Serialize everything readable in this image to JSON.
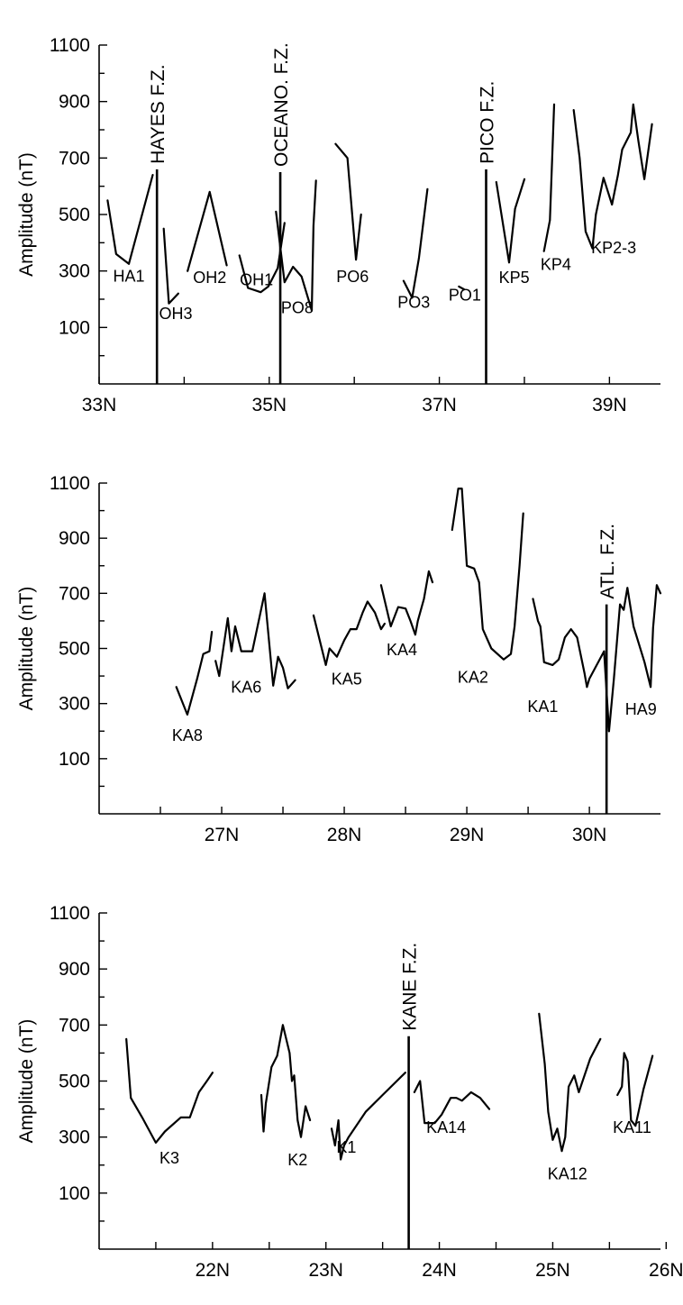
{
  "chart_data": [
    {
      "type": "line",
      "ylabel": "Amplitude (nT)",
      "ylim": [
        -100,
        1100
      ],
      "xlim": [
        33.0,
        39.6
      ],
      "y_ticks": [
        "1100",
        "900",
        "700",
        "500",
        "300",
        "100"
      ],
      "x_ticks": [
        {
          "value": 33,
          "label": "33N"
        },
        {
          "value": 35,
          "label": "35N"
        },
        {
          "value": 37,
          "label": "37N"
        },
        {
          "value": 39,
          "label": "39N"
        }
      ],
      "minor_x_ticks": [
        34,
        36,
        38
      ],
      "fracture_zones": [
        {
          "x": 33.68,
          "label": "HAYES F.Z.",
          "top": 660
        },
        {
          "x": 35.13,
          "label": "OCEANO. F.Z.",
          "top": 650
        },
        {
          "x": 37.55,
          "label": "PICO F.Z.",
          "top": 660
        }
      ],
      "series": [
        {
          "name": "HA1",
          "label_at": [
            33.35,
            262
          ],
          "x": [
            33.1,
            33.2,
            33.35,
            33.63
          ],
          "y": [
            550,
            360,
            325,
            640
          ]
        },
        {
          "name": "OH3",
          "label_at": [
            33.9,
            130
          ],
          "x": [
            33.76,
            33.82,
            33.93
          ],
          "y": [
            450,
            185,
            220
          ]
        },
        {
          "name": "OH2",
          "label_at": [
            34.3,
            257
          ],
          "x": [
            34.04,
            34.3,
            34.5
          ],
          "y": [
            300,
            580,
            320
          ]
        },
        {
          "name": "OH1",
          "label_at": [
            34.85,
            250
          ],
          "x": [
            34.65,
            34.75,
            34.9,
            34.99,
            35.1,
            35.18
          ],
          "y": [
            355,
            240,
            225,
            245,
            310,
            470
          ]
        },
        {
          "name": "PO8",
          "label_at": [
            35.33,
            150
          ],
          "x": [
            35.08,
            35.18,
            35.28,
            35.38,
            35.5,
            35.52,
            35.55
          ],
          "y": [
            510,
            260,
            315,
            280,
            160,
            460,
            620
          ]
        },
        {
          "name": "PO6",
          "label_at": [
            35.98,
            260
          ],
          "x": [
            35.78,
            35.92,
            36.02,
            36.08
          ],
          "y": [
            750,
            700,
            340,
            500
          ]
        },
        {
          "name": "PO3",
          "label_at": [
            36.7,
            170
          ],
          "x": [
            36.58,
            36.68,
            36.76,
            36.86
          ],
          "y": [
            265,
            205,
            345,
            590
          ]
        },
        {
          "name": "PO1",
          "label_at": [
            37.3,
            195
          ],
          "x": [
            37.23,
            37.29
          ],
          "y": [
            245,
            235
          ]
        },
        {
          "name": "KP5",
          "label_at": [
            37.88,
            257
          ],
          "x": [
            37.67,
            37.82,
            37.89,
            38.0
          ],
          "y": [
            615,
            330,
            520,
            625
          ]
        },
        {
          "name": "KP4",
          "label_at": [
            38.37,
            303
          ],
          "x": [
            38.23,
            38.3,
            38.35
          ],
          "y": [
            370,
            480,
            890
          ]
        },
        {
          "name": "KP2-3",
          "label_at": [
            39.05,
            363
          ],
          "x": [
            38.58,
            38.65,
            38.72,
            38.8,
            38.84,
            38.93,
            39.03,
            39.1,
            39.15,
            39.25,
            39.28,
            39.34,
            39.41,
            39.5
          ],
          "y": [
            870,
            700,
            440,
            380,
            500,
            630,
            535,
            640,
            730,
            790,
            890,
            760,
            625,
            820
          ]
        }
      ]
    },
    {
      "type": "line",
      "ylabel": "Amplitude (nT)",
      "ylim": [
        -100,
        1100
      ],
      "xlim": [
        26.0,
        30.58
      ],
      "y_ticks": [
        "1100",
        "900",
        "700",
        "500",
        "300",
        "100"
      ],
      "x_ticks": [
        {
          "value": 27,
          "label": "27N"
        },
        {
          "value": 28,
          "label": "28N"
        },
        {
          "value": 29,
          "label": "29N"
        },
        {
          "value": 30,
          "label": "30N"
        }
      ],
      "minor_x_ticks": [
        26.5,
        27.5,
        28.5,
        29.5
      ],
      "fracture_zones": [
        {
          "x": 30.14,
          "label": "ATL. F.Z.",
          "top": 660
        }
      ],
      "series": [
        {
          "name": "KA8",
          "label_at": [
            26.72,
            165
          ],
          "x": [
            26.63,
            26.72,
            26.8,
            26.85,
            26.9,
            26.92
          ],
          "y": [
            360,
            260,
            390,
            480,
            490,
            560
          ]
        },
        {
          "name": "KA6",
          "label_at": [
            27.2,
            340
          ],
          "x": [
            26.95,
            26.98,
            27.05,
            27.08,
            27.11,
            27.16,
            27.25,
            27.35,
            27.42,
            27.46,
            27.5,
            27.54,
            27.6
          ],
          "y": [
            455,
            400,
            610,
            490,
            580,
            490,
            490,
            700,
            365,
            470,
            430,
            355,
            385
          ]
        },
        {
          "name": "KA5",
          "label_at": [
            28.02,
            370
          ],
          "x": [
            27.75,
            27.85,
            27.88,
            27.94,
            28.0,
            28.05,
            28.1,
            28.15,
            28.19,
            28.25,
            28.3,
            28.33
          ],
          "y": [
            620,
            440,
            500,
            470,
            530,
            570,
            570,
            630,
            670,
            630,
            570,
            590
          ]
        },
        {
          "name": "KA4",
          "label_at": [
            28.47,
            475
          ],
          "x": [
            28.3,
            28.38,
            28.44,
            28.5,
            28.54,
            28.58,
            28.6,
            28.65,
            28.69,
            28.72
          ],
          "y": [
            730,
            580,
            650,
            645,
            600,
            550,
            600,
            680,
            780,
            740
          ]
        },
        {
          "name": "KA2",
          "label_at": [
            29.05,
            375
          ],
          "x": [
            28.88,
            28.93,
            28.96,
            29.0,
            29.06,
            29.1,
            29.13,
            29.2,
            29.3,
            29.36,
            29.39,
            29.43,
            29.46
          ],
          "y": [
            930,
            1080,
            1080,
            800,
            790,
            740,
            570,
            500,
            460,
            480,
            580,
            800,
            990
          ]
        },
        {
          "name": "KA1",
          "label_at": [
            29.62,
            270
          ],
          "x": [
            29.54,
            29.58,
            29.6,
            29.63,
            29.7,
            29.75,
            29.8,
            29.85,
            29.9,
            29.96,
            29.98,
            30.0,
            30.12,
            30.16
          ],
          "y": [
            680,
            600,
            580,
            450,
            440,
            460,
            540,
            570,
            540,
            410,
            360,
            390,
            490,
            200
          ]
        },
        {
          "name": "HA9",
          "label_at": [
            30.42,
            260
          ],
          "x": [
            30.16,
            30.2,
            30.25,
            30.28,
            30.31,
            30.36,
            30.45,
            30.5,
            30.52,
            30.55,
            30.58
          ],
          "y": [
            200,
            390,
            660,
            640,
            720,
            580,
            450,
            360,
            575,
            730,
            700
          ]
        }
      ]
    },
    {
      "type": "line",
      "ylabel": "Amplitude (nT)",
      "ylim": [
        -100,
        1100
      ],
      "xlim": [
        21.0,
        25.95
      ],
      "y_ticks": [
        "1100",
        "900",
        "700",
        "500",
        "300",
        "100"
      ],
      "x_ticks": [
        {
          "value": 22,
          "label": "22N"
        },
        {
          "value": 23,
          "label": "23N"
        },
        {
          "value": 24,
          "label": "24N"
        },
        {
          "value": 25,
          "label": "25N"
        },
        {
          "value": 26,
          "label": "26N"
        }
      ],
      "minor_x_ticks": [
        21.5,
        22.5,
        23.5,
        24.5,
        25.5
      ],
      "fracture_zones": [
        {
          "x": 23.73,
          "label": "KANE F.Z.",
          "top": 660
        }
      ],
      "series": [
        {
          "name": "K3",
          "label_at": [
            21.62,
            205
          ],
          "x": [
            21.24,
            21.28,
            21.38,
            21.5,
            21.58,
            21.72,
            21.8,
            21.88,
            21.95,
            22.0
          ],
          "y": [
            650,
            440,
            370,
            280,
            320,
            370,
            370,
            460,
            500,
            530
          ]
        },
        {
          "name": "K2",
          "label_at": [
            22.75,
            200
          ],
          "x": [
            22.43,
            22.45,
            22.47,
            22.52,
            22.57,
            22.62,
            22.68,
            22.7,
            22.72,
            22.75,
            22.78,
            22.82,
            22.86
          ],
          "y": [
            450,
            320,
            420,
            550,
            590,
            700,
            600,
            500,
            520,
            360,
            300,
            410,
            360
          ]
        },
        {
          "name": "K1",
          "label_at": [
            23.18,
            245
          ],
          "x": [
            23.05,
            23.08,
            23.11,
            23.13,
            23.16,
            23.2,
            23.35,
            23.5,
            23.7
          ],
          "y": [
            330,
            270,
            360,
            220,
            270,
            300,
            390,
            450,
            530
          ]
        },
        {
          "name": "KA14",
          "label_at": [
            24.06,
            315
          ],
          "x": [
            23.78,
            23.83,
            23.87,
            23.96,
            24.02,
            24.1,
            24.15,
            24.2,
            24.28,
            24.36,
            24.44
          ],
          "y": [
            460,
            500,
            350,
            350,
            380,
            440,
            440,
            430,
            460,
            440,
            400
          ]
        },
        {
          "name": "KA12",
          "label_at": [
            25.13,
            150
          ],
          "x": [
            24.88,
            24.93,
            24.96,
            25.0,
            25.04,
            25.08,
            25.11,
            25.14,
            25.19,
            25.23,
            25.33,
            25.42
          ],
          "y": [
            740,
            560,
            390,
            290,
            330,
            250,
            300,
            480,
            520,
            460,
            580,
            650
          ]
        },
        {
          "name": "KA11",
          "label_at": [
            25.7,
            315
          ],
          "x": [
            25.57,
            25.61,
            25.63,
            25.66,
            25.69,
            25.73,
            25.8,
            25.88
          ],
          "y": [
            450,
            480,
            600,
            570,
            360,
            340,
            470,
            590
          ]
        }
      ]
    }
  ]
}
